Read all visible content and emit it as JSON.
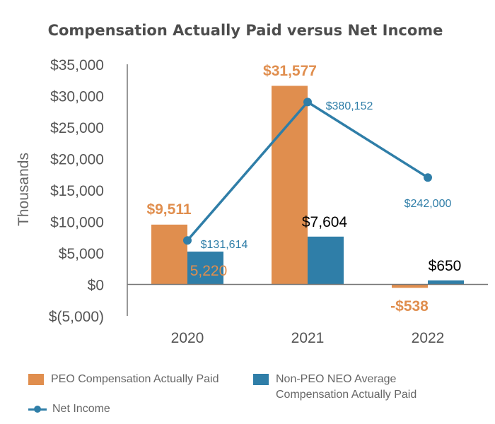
{
  "chart_data": {
    "type": "bar",
    "title": "Compensation Actually Paid versus Net Income",
    "ylabel": "Thousands",
    "xlabel": "",
    "categories": [
      "2020",
      "2021",
      "2022"
    ],
    "ylim": [
      -5000,
      35000
    ],
    "yticks": [
      35000,
      30000,
      25000,
      20000,
      15000,
      10000,
      5000,
      0,
      -5000
    ],
    "ytick_labels": [
      "$35,000",
      "$30,000",
      "$25,000",
      "$20,000",
      "$15,000",
      "$10,000",
      "$5,000",
      "$0",
      "$(5,000)"
    ],
    "series": [
      {
        "name": "PEO Compensation Actually Paid",
        "kind": "bar",
        "color": "#e08e4e",
        "values": [
          9511,
          31577,
          -538
        ],
        "labels": [
          "$9,511",
          "$31,577",
          "-$538"
        ]
      },
      {
        "name": "Non-PEO NEO Average Compensation Actually Paid",
        "kind": "bar",
        "color": "#2f7ea8",
        "values": [
          5220,
          7604,
          650
        ],
        "labels": [
          "5,220",
          "$7,604",
          "$650"
        ]
      },
      {
        "name": "Net Income",
        "kind": "line",
        "color": "#2f7ea8",
        "values": [
          131614,
          380152,
          242000
        ],
        "plotted_position": [
          7000,
          29000,
          17000
        ],
        "labels": [
          "$131,614",
          "$380,152",
          "$242,000"
        ]
      }
    ],
    "legend_position": "bottom",
    "grid": false
  },
  "legend": {
    "peo_label": "PEO Compensation Actually Paid",
    "neo_label": "Non-PEO NEO Average Compensation Actually Paid",
    "net_label": "Net Income"
  },
  "colors": {
    "peo": "#e08e4e",
    "neo": "#2f7ea8",
    "net": "#2f7ea8",
    "axis": "#777777"
  }
}
